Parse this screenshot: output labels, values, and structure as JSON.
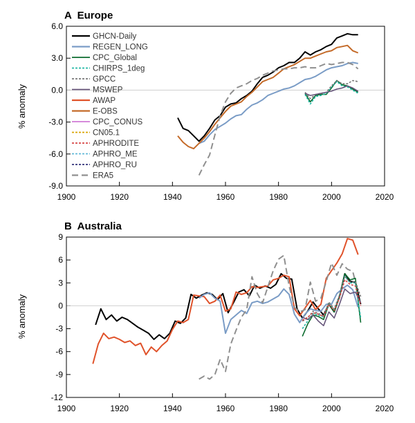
{
  "colors": {
    "GHCN-Daily": "#000000",
    "REGEN_LONG": "#7a9cc6",
    "CPC_Global": "#0b6b2e",
    "CHIRPS_1deg": "#1fb7a4",
    "GPCC": "#777777",
    "MSWEP": "#66557a",
    "AWAP": "#e0522a",
    "E-OBS": "#c46a28",
    "CPC_CONUS": "#d17ad6",
    "CN05.1": "#d9a400",
    "APHRODITE": "#d64545",
    "APHRO_ME": "#60b8d8",
    "APHRO_RU": "#33337a",
    "ERA5": "#8f8f8f"
  },
  "chart_data": [
    {
      "type": "line",
      "title": "A  Europe",
      "ylabel": "% anomaly",
      "xlim": [
        1900,
        2020
      ],
      "ylim": [
        -9,
        6
      ],
      "xticks": [
        "1900",
        "1920",
        "1940",
        "1960",
        "1980",
        "2000",
        "2020"
      ],
      "yticks": [
        "6.0",
        "3.0",
        "0.0",
        "-3.0",
        "-6.0",
        "-9.0"
      ],
      "legend": [
        "GHCN-Daily",
        "REGEN_LONG",
        "CPC_Global",
        "CHIRPS_1deg",
        "GPCC",
        "MSWEP",
        "AWAP",
        "E-OBS",
        "CPC_CONUS",
        "CN05.1",
        "APHRODITE",
        "APHRO_ME",
        "APHRO_RU",
        "ERA5"
      ],
      "legend_position": "top-left",
      "series": [
        {
          "name": "GHCN-Daily",
          "x": [
            1942,
            1944,
            1946,
            1948,
            1950,
            1952,
            1954,
            1956,
            1958,
            1960,
            1962,
            1964,
            1966,
            1968,
            1970,
            1972,
            1974,
            1976,
            1978,
            1980,
            1982,
            1984,
            1986,
            1988,
            1990,
            1992,
            1994,
            1996,
            1998,
            2000,
            2002,
            2004,
            2006,
            2008,
            2010
          ],
          "y": [
            -2.6,
            -3.6,
            -3.8,
            -4.3,
            -4.8,
            -4.3,
            -3.6,
            -2.8,
            -2.4,
            -1.6,
            -1.3,
            -1.2,
            -0.8,
            -0.5,
            -0.1,
            0.6,
            1.2,
            1.4,
            1.7,
            2.1,
            2.3,
            2.6,
            2.6,
            3.0,
            3.6,
            3.3,
            3.6,
            3.8,
            4.1,
            4.3,
            4.9,
            5.1,
            5.3,
            5.2,
            5.2
          ]
        },
        {
          "name": "REGEN_LONG",
          "x": [
            1950,
            1952,
            1954,
            1956,
            1958,
            1960,
            1962,
            1964,
            1966,
            1968,
            1970,
            1972,
            1974,
            1976,
            1978,
            1980,
            1982,
            1984,
            1986,
            1988,
            1990,
            1992,
            1994,
            1996,
            1998,
            2000,
            2002,
            2004,
            2006,
            2008,
            2010
          ],
          "y": [
            -5.0,
            -4.8,
            -4.2,
            -3.7,
            -3.4,
            -3.1,
            -2.7,
            -2.4,
            -2.3,
            -1.8,
            -1.4,
            -1.2,
            -0.9,
            -0.5,
            -0.3,
            -0.1,
            0.1,
            0.2,
            0.4,
            0.7,
            1.0,
            1.1,
            1.3,
            1.6,
            1.9,
            2.1,
            2.2,
            2.3,
            2.5,
            2.6,
            2.5
          ]
        },
        {
          "name": "E-OBS",
          "x": [
            1942,
            1944,
            1946,
            1948,
            1950,
            1952,
            1954,
            1956,
            1958,
            1960,
            1962,
            1964,
            1966,
            1968,
            1970,
            1972,
            1974,
            1976,
            1978,
            1980,
            1982,
            1984,
            1986,
            1988,
            1990,
            1992,
            1994,
            1996,
            1998,
            2000,
            2002,
            2004,
            2006,
            2008,
            2010
          ],
          "y": [
            -4.3,
            -4.9,
            -5.3,
            -5.5,
            -5.0,
            -4.5,
            -3.9,
            -3.2,
            -2.6,
            -2.0,
            -1.5,
            -1.3,
            -1.1,
            -0.6,
            -0.2,
            0.3,
            0.8,
            1.0,
            1.2,
            1.6,
            2.0,
            2.2,
            2.4,
            2.7,
            3.0,
            3.0,
            3.2,
            3.4,
            3.6,
            3.7,
            4.0,
            4.1,
            4.2,
            3.7,
            3.5
          ]
        },
        {
          "name": "ERA5",
          "x": [
            1950,
            1952,
            1954,
            1956,
            1958,
            1960,
            1962,
            1964,
            1966,
            1968,
            1970,
            1972,
            1974,
            1976,
            1978,
            1980,
            1982,
            1984,
            1986,
            1988,
            1990,
            1992,
            1994,
            1996,
            1998,
            2000,
            2002,
            2004,
            2006,
            2008,
            2010
          ],
          "y": [
            -8.0,
            -7.0,
            -6.1,
            -4.2,
            -2.4,
            -1.1,
            -0.3,
            0.2,
            0.4,
            0.6,
            0.9,
            1.1,
            1.4,
            1.6,
            1.8,
            1.9,
            2.0,
            2.0,
            2.1,
            2.1,
            2.2,
            2.1,
            2.1,
            2.3,
            2.5,
            2.4,
            2.5,
            2.6,
            2.6,
            2.4,
            2.0
          ]
        },
        {
          "name": "CPC_Global",
          "x": [
            1990,
            1992,
            1994,
            1996,
            1998,
            2000,
            2002,
            2004,
            2006,
            2008,
            2010
          ],
          "y": [
            -0.3,
            -1.1,
            -0.5,
            -0.4,
            -0.4,
            0.2,
            0.9,
            0.5,
            0.4,
            0.1,
            -0.2
          ]
        },
        {
          "name": "CHIRPS_1deg",
          "x": [
            1990,
            1992,
            1994,
            1996,
            1998,
            2000,
            2002,
            2004,
            2006,
            2008,
            2010
          ],
          "y": [
            -0.4,
            -1.3,
            -0.6,
            -0.5,
            -0.3,
            0.3,
            0.8,
            0.4,
            0.3,
            0.0,
            -0.3
          ]
        },
        {
          "name": "GPCC",
          "x": [
            1990,
            1992,
            1994,
            1996,
            1998,
            2000,
            2002,
            2004,
            2006,
            2008,
            2010
          ],
          "y": [
            -0.2,
            -0.8,
            -0.4,
            -0.3,
            -0.2,
            0.4,
            0.9,
            0.6,
            0.6,
            0.9,
            0.8
          ]
        },
        {
          "name": "MSWEP",
          "x": [
            1990,
            1992,
            1994,
            1996,
            1998,
            2000,
            2002,
            2004,
            2006,
            2008,
            2010
          ],
          "y": [
            -0.3,
            -0.5,
            -0.4,
            -0.3,
            -0.2,
            -0.1,
            0.1,
            0.2,
            0.4,
            0.2,
            -0.1
          ]
        }
      ]
    },
    {
      "type": "line",
      "title": "B  Australia",
      "ylabel": "% anomaly",
      "xlim": [
        1900,
        2020
      ],
      "ylim": [
        -12,
        9
      ],
      "xticks": [
        "1900",
        "1920",
        "1940",
        "1960",
        "1980",
        "2000",
        "2020"
      ],
      "yticks": [
        "9",
        "6",
        "3",
        "0",
        "-3",
        "-6",
        "-9",
        "-12"
      ],
      "series": [
        {
          "name": "GHCN-Daily",
          "x": [
            1911,
            1913,
            1915,
            1917,
            1919,
            1921,
            1923,
            1925,
            1927,
            1929,
            1931,
            1933,
            1935,
            1937,
            1939,
            1941,
            1943,
            1945,
            1947,
            1949,
            1951,
            1953,
            1955,
            1957,
            1959,
            1961,
            1963,
            1965,
            1967,
            1969,
            1971,
            1973,
            1975,
            1977,
            1979,
            1981,
            1983,
            1985,
            1987,
            1989,
            1991,
            1993,
            1995,
            1997,
            1999,
            2001,
            2003,
            2005,
            2007,
            2009,
            2011
          ],
          "y": [
            -2.5,
            -0.4,
            -1.8,
            -1.2,
            -2.0,
            -1.5,
            -1.8,
            -2.3,
            -2.8,
            -3.2,
            -3.6,
            -4.4,
            -3.8,
            -4.3,
            -3.6,
            -2.0,
            -2.3,
            -1.6,
            1.5,
            1.0,
            1.4,
            1.7,
            1.5,
            0.8,
            1.6,
            -0.9,
            0.4,
            1.8,
            2.1,
            1.3,
            2.7,
            2.3,
            2.6,
            2.3,
            2.8,
            4.2,
            3.6,
            3.5,
            -0.4,
            -1.6,
            -0.7,
            0.5,
            -0.4,
            -1.2,
            0.2,
            -0.8,
            1.2,
            4.2,
            3.2,
            3.1,
            0.2
          ]
        },
        {
          "name": "AWAP",
          "x": [
            1910,
            1912,
            1914,
            1916,
            1918,
            1920,
            1922,
            1924,
            1926,
            1928,
            1930,
            1932,
            1934,
            1936,
            1938,
            1940,
            1942,
            1944,
            1946,
            1948,
            1950,
            1952,
            1954,
            1956,
            1958,
            1960,
            1962,
            1964,
            1966,
            1968,
            1970,
            1972,
            1974,
            1976,
            1978,
            1980,
            1982,
            1984,
            1986,
            1988,
            1990,
            1992,
            1994,
            1996,
            1998,
            2000,
            2002,
            2004,
            2006,
            2008,
            2010
          ],
          "y": [
            -7.6,
            -5.0,
            -3.6,
            -4.3,
            -4.1,
            -4.4,
            -4.8,
            -4.6,
            -5.2,
            -4.9,
            -6.4,
            -5.4,
            -6.0,
            -5.2,
            -4.6,
            -3.1,
            -2.0,
            -2.2,
            -1.8,
            1.4,
            1.3,
            1.2,
            0.3,
            0.6,
            1.4,
            -0.7,
            -0.4,
            1.8,
            1.5,
            1.7,
            2.5,
            2.4,
            2.5,
            2.6,
            3.4,
            3.6,
            4.0,
            3.8,
            -0.4,
            -1.3,
            -0.3,
            0.7,
            -0.5,
            0.2,
            3.6,
            4.6,
            5.6,
            6.8,
            8.8,
            8.6,
            6.7
          ]
        },
        {
          "name": "REGEN_LONG",
          "x": [
            1950,
            1952,
            1954,
            1956,
            1958,
            1960,
            1962,
            1964,
            1966,
            1968,
            1970,
            1972,
            1974,
            1976,
            1978,
            1980,
            1982,
            1984,
            1986,
            1988,
            1990,
            1992,
            1994,
            1996,
            1998,
            2000,
            2002,
            2004,
            2006,
            2008,
            2010
          ],
          "y": [
            1.0,
            1.5,
            1.7,
            1.0,
            0.6,
            -3.6,
            -1.8,
            -1.2,
            -0.6,
            -1.0,
            0.4,
            0.6,
            0.3,
            0.5,
            0.9,
            1.3,
            2.2,
            1.5,
            -1.1,
            -2.2,
            -1.1,
            -0.4,
            -0.6,
            -0.7,
            0.2,
            0.2,
            1.6,
            2.2,
            2.7,
            2.1,
            -0.2
          ]
        },
        {
          "name": "ERA5",
          "x": [
            1950,
            1952,
            1954,
            1956,
            1958,
            1960,
            1962,
            1964,
            1966,
            1968,
            1970,
            1972,
            1974,
            1976,
            1978,
            1980,
            1982,
            1984,
            1986,
            1988,
            1990,
            1992,
            1994,
            1996,
            1998,
            2000,
            2002,
            2004,
            2006,
            2008,
            2010
          ],
          "y": [
            -9.6,
            -9.2,
            -9.6,
            -9.0,
            -7.0,
            -8.6,
            -5.0,
            -3.2,
            -1.5,
            -0.5,
            3.8,
            1.6,
            0.4,
            2.5,
            4.6,
            6.1,
            6.6,
            2.6,
            -0.2,
            -0.8,
            -0.5,
            3.1,
            0.6,
            1.0,
            3.2,
            5.6,
            4.0,
            5.5,
            4.8,
            4.5,
            1.8
          ]
        },
        {
          "name": "CPC_Global",
          "x": [
            1989,
            1991,
            1993,
            1995,
            1997,
            1999,
            2001,
            2003,
            2005,
            2007,
            2009,
            2011
          ],
          "y": [
            -4.0,
            -2.4,
            -1.2,
            -1.4,
            -1.8,
            0.2,
            -0.8,
            1.2,
            4.2,
            3.4,
            3.6,
            -2.2
          ]
        },
        {
          "name": "CHIRPS_1deg",
          "x": [
            1989,
            1991,
            1993,
            1995,
            1997,
            1999,
            2001,
            2003,
            2005,
            2007,
            2009,
            2011
          ],
          "y": [
            -3.0,
            -2.0,
            -1.0,
            -1.2,
            -1.5,
            0.3,
            -0.5,
            1.3,
            3.9,
            3.0,
            3.0,
            -1.6
          ]
        },
        {
          "name": "GPCC",
          "x": [
            1989,
            1991,
            1993,
            1995,
            1997,
            1999,
            2001,
            2003,
            2005,
            2007,
            2009,
            2011
          ],
          "y": [
            -2.0,
            -1.6,
            -0.7,
            -1.0,
            -1.3,
            0.5,
            -0.4,
            1.4,
            3.8,
            3.1,
            3.2,
            1.2
          ]
        },
        {
          "name": "MSWEP",
          "x": [
            1989,
            1991,
            1993,
            1995,
            1997,
            1999,
            2001,
            2003,
            2005,
            2007,
            2009,
            2011
          ],
          "y": [
            -1.5,
            -1.8,
            -1.2,
            -2.0,
            -2.6,
            -0.8,
            -1.6,
            0.2,
            2.2,
            1.6,
            1.8,
            0.4
          ]
        },
        {
          "name": "APHRODITE",
          "x": [
            1989,
            1991,
            1993,
            1995,
            1997,
            1999,
            2001,
            2003,
            2005,
            2007,
            2009,
            2011
          ],
          "y": [
            -1.9,
            -1.5,
            -0.9,
            -1.1,
            -1.4,
            0.2,
            -0.6,
            1.0,
            3.4,
            2.8,
            2.6,
            0.0
          ]
        }
      ]
    }
  ]
}
